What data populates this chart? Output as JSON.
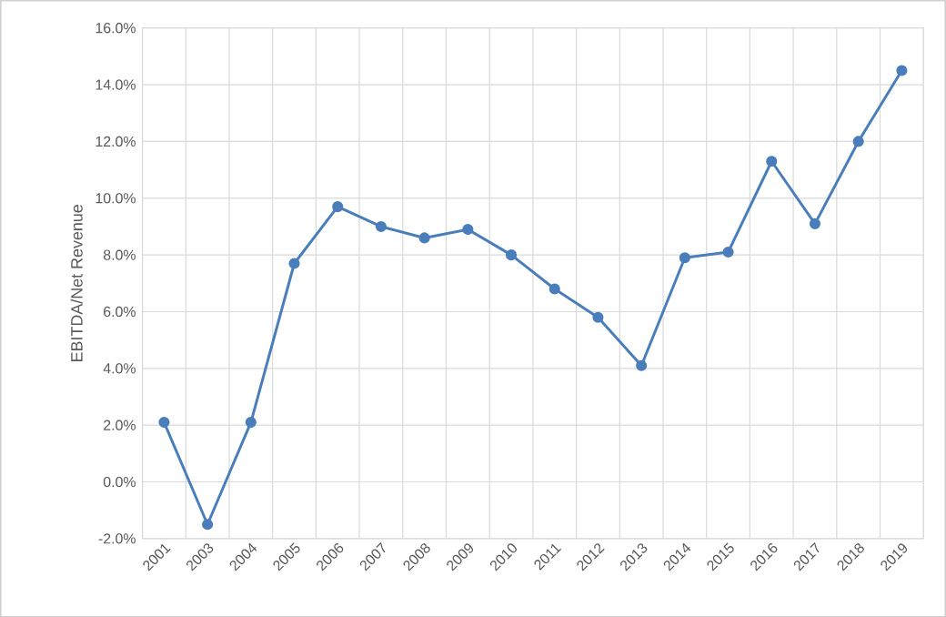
{
  "chart_data": {
    "type": "line",
    "ylabel": "EBITDA/Net Revenue",
    "categories": [
      "2001",
      "2003",
      "2004",
      "2005",
      "2006",
      "2007",
      "2008",
      "2009",
      "2010",
      "2011",
      "2012",
      "2013",
      "2014",
      "2015",
      "2016",
      "2017",
      "2018",
      "2019"
    ],
    "series": [
      {
        "color": "#4a7ebb",
        "values": [
          2.1,
          -1.5,
          2.1,
          7.7,
          9.7,
          9.0,
          8.6,
          8.9,
          8.0,
          6.8,
          5.8,
          4.1,
          7.9,
          8.1,
          11.3,
          9.1,
          12.0,
          14.5
        ]
      }
    ],
    "ylim": [
      -2,
      16
    ],
    "yticks": [
      {
        "value": -2,
        "label": "-2.0%"
      },
      {
        "value": 0,
        "label": "0.0%"
      },
      {
        "value": 2,
        "label": "2.0%"
      },
      {
        "value": 4,
        "label": "4.0%"
      },
      {
        "value": 6,
        "label": "6.0%"
      },
      {
        "value": 8,
        "label": "8.0%"
      },
      {
        "value": 10,
        "label": "10.0%"
      },
      {
        "value": 12,
        "label": "12.0%"
      },
      {
        "value": 14,
        "label": "14.0%"
      },
      {
        "value": 16,
        "label": "16.0%"
      }
    ],
    "grid": true,
    "marker": "circle",
    "line_style": "solid"
  }
}
